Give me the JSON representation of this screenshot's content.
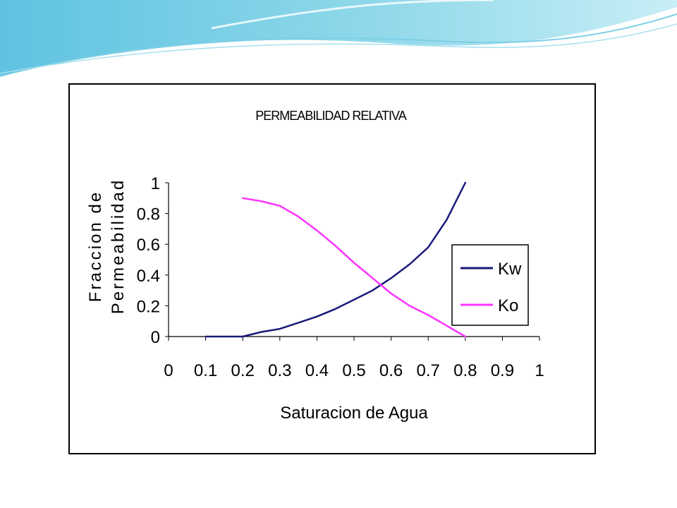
{
  "chart_data": {
    "type": "line",
    "title": "PERMEABILIDAD RELATIVA",
    "xlabel": "Saturacion de Agua",
    "ylabel": [
      "Fraccion de",
      "Permeabilidad"
    ],
    "xlim": [
      0,
      1
    ],
    "ylim": [
      0,
      1
    ],
    "x_ticks": [
      "0",
      "0.1",
      "0.2",
      "0.3",
      "0.4",
      "0.5",
      "0.6",
      "0.7",
      "0.8",
      "0.9",
      "1"
    ],
    "y_ticks": [
      "0",
      "0.2",
      "0.4",
      "0.6",
      "0.8",
      "1"
    ],
    "grid": false,
    "legend_position": "right",
    "series": [
      {
        "name": "Kw",
        "color": "#1a1a7a",
        "x": [
          0.1,
          0.2,
          0.25,
          0.3,
          0.35,
          0.4,
          0.45,
          0.5,
          0.55,
          0.6,
          0.65,
          0.7,
          0.75,
          0.8
        ],
        "y": [
          0,
          0,
          0.03,
          0.05,
          0.09,
          0.13,
          0.18,
          0.24,
          0.3,
          0.38,
          0.47,
          0.58,
          0.76,
          1.0
        ]
      },
      {
        "name": "Ko",
        "color": "#ff33ff",
        "x": [
          0.2,
          0.25,
          0.3,
          0.35,
          0.4,
          0.45,
          0.5,
          0.55,
          0.6,
          0.65,
          0.7,
          0.75,
          0.8
        ],
        "y": [
          0.9,
          0.88,
          0.85,
          0.78,
          0.69,
          0.59,
          0.48,
          0.38,
          0.28,
          0.2,
          0.14,
          0.07,
          0.0
        ]
      }
    ]
  }
}
